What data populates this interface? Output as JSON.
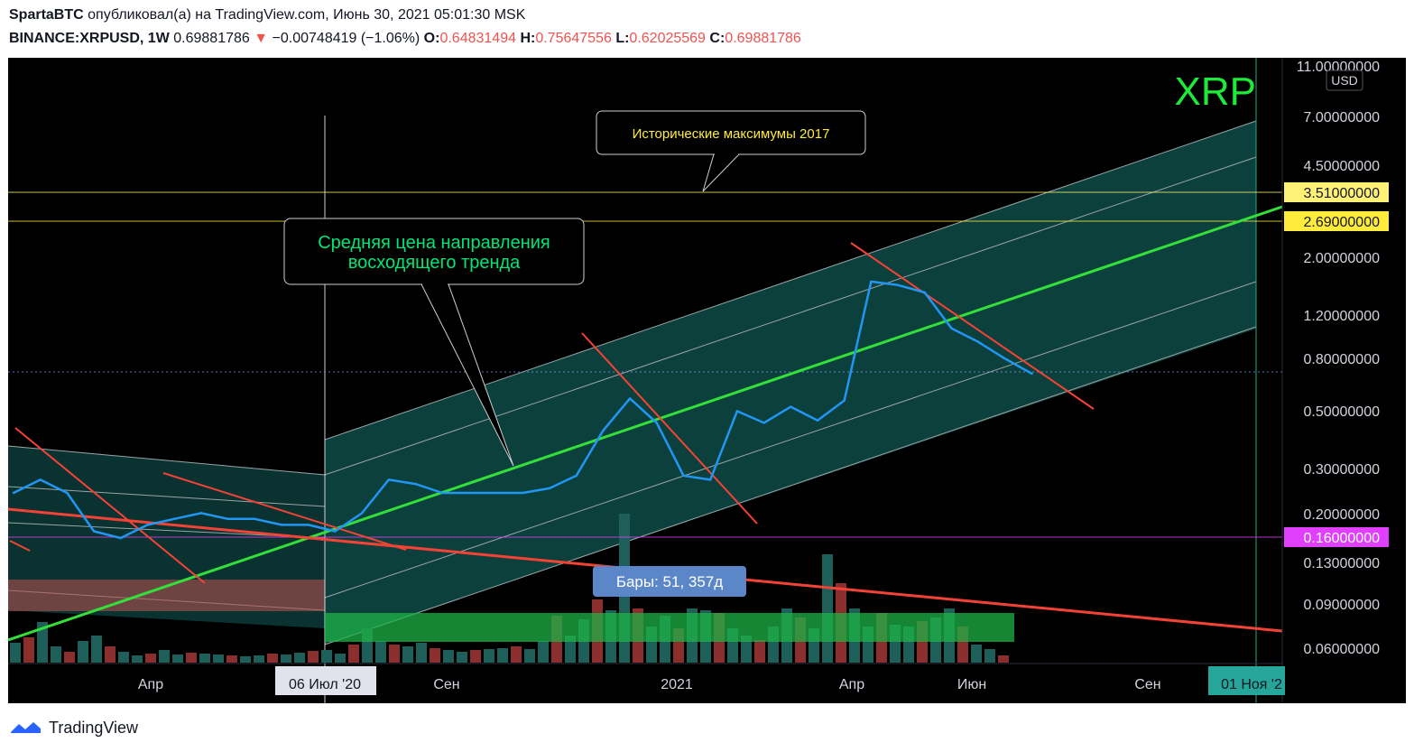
{
  "header": {
    "author": "SpartaBTC",
    "published_text": "опубликовал(а) на TradingView.com, Июнь 30, 2021 05:01:30 MSK",
    "symbol": "BINANCE:XRPUSD, 1W",
    "last": "0.69881786",
    "change": "−0.00748419 (−1.06%)",
    "o_label": "O:",
    "o_value": "0.64831494",
    "h_label": "H:",
    "h_value": "0.75647556",
    "l_label": "L:",
    "l_value": "0.62025569",
    "c_label": "C:",
    "c_value": "0.69881786"
  },
  "footer": {
    "brand": "TradingView"
  },
  "chart_data": {
    "type": "line",
    "price_scale": "log",
    "currency": "USD",
    "ticker_watermark": "XRP",
    "y_ticks": [
      "11.00000000",
      "7.00000000",
      "4.50000000",
      "2.00000000",
      "1.20000000",
      "0.80000000",
      "0.50000000",
      "0.30000000",
      "0.20000000",
      "0.13000000",
      "0.09000000",
      "0.06000000"
    ],
    "x_ticks": [
      "Апр",
      "06 Июл '20",
      "Сен",
      "2021",
      "Апр",
      "Июн",
      "Сен",
      "01 Ноя '2"
    ],
    "horizontal_levels": [
      {
        "value": "3.51000000",
        "color": "#fff176"
      },
      {
        "value": "2.69000000",
        "color": "#ffeb3b"
      },
      {
        "value": "0.16000000",
        "color": "#e040fb"
      }
    ],
    "annotations": [
      {
        "text": "Исторические максимумы 2017",
        "color": "#ffeb3b"
      },
      {
        "text": "Средняя цена направления восходящего тренда",
        "color": "#00e676"
      },
      {
        "text": "Бары: 51, 357д",
        "color": "#ffffff"
      }
    ],
    "series": [
      {
        "color": "#2196f3",
        "x": [
          "2020-01-06",
          "2020-01-20",
          "2020-02-03",
          "2020-02-17",
          "2020-03-02",
          "2020-03-16",
          "2020-03-30",
          "2020-04-13",
          "2020-04-27",
          "2020-05-11",
          "2020-05-25",
          "2020-06-08",
          "2020-06-22",
          "2020-07-06",
          "2020-07-20",
          "2020-08-03",
          "2020-08-17",
          "2020-08-31",
          "2020-09-14",
          "2020-09-28",
          "2020-10-12",
          "2020-10-26",
          "2020-11-09",
          "2020-11-23",
          "2020-12-07",
          "2020-12-21",
          "2021-01-04",
          "2021-01-18",
          "2021-02-01",
          "2021-02-15",
          "2021-03-01",
          "2021-03-15",
          "2021-03-29",
          "2021-04-12",
          "2021-04-26",
          "2021-05-10",
          "2021-05-24",
          "2021-06-07",
          "2021-06-21"
        ],
        "y": [
          0.24,
          0.27,
          0.24,
          0.17,
          0.16,
          0.18,
          0.19,
          0.2,
          0.19,
          0.19,
          0.18,
          0.18,
          0.17,
          0.2,
          0.27,
          0.26,
          0.24,
          0.24,
          0.24,
          0.24,
          0.25,
          0.28,
          0.42,
          0.56,
          0.45,
          0.28,
          0.27,
          0.5,
          0.45,
          0.52,
          0.46,
          0.55,
          1.6,
          1.55,
          1.45,
          1.05,
          0.93,
          0.8,
          0.7
        ]
      }
    ]
  }
}
